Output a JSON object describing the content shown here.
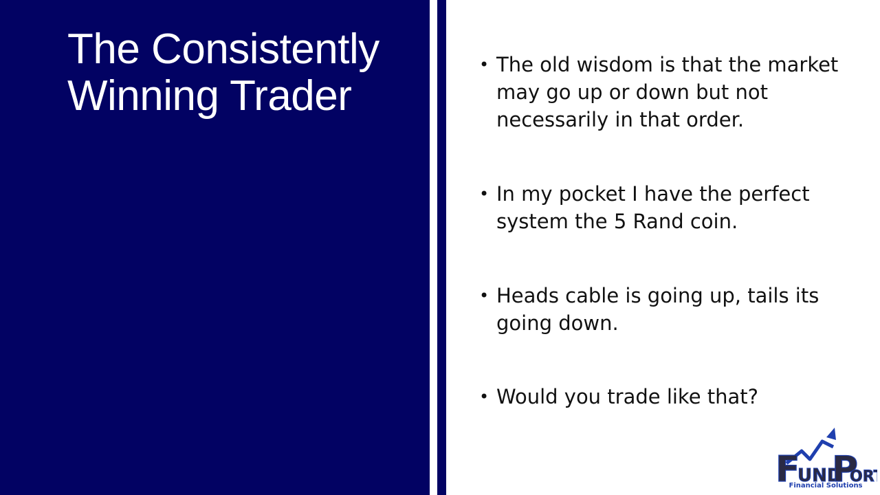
{
  "slide": {
    "title_lines": [
      "The Consistently",
      "Winning Trader"
    ],
    "bullets": [
      "The old wisdom is that the market may go up or down but not necessarily in that order.",
      "In my pocket I have the perfect system the 5 Rand coin.",
      "Heads cable is going up, tails its going down.",
      "Would you trade like that?"
    ],
    "bullet_symbol": "•"
  },
  "logo": {
    "name_letters": [
      "F",
      "UND",
      "P",
      "ORT"
    ],
    "tagline": "Financial Solutions"
  },
  "colors": {
    "panel": "#020263",
    "accent_blue": "#1f3fae",
    "text_dark": "#111111"
  }
}
